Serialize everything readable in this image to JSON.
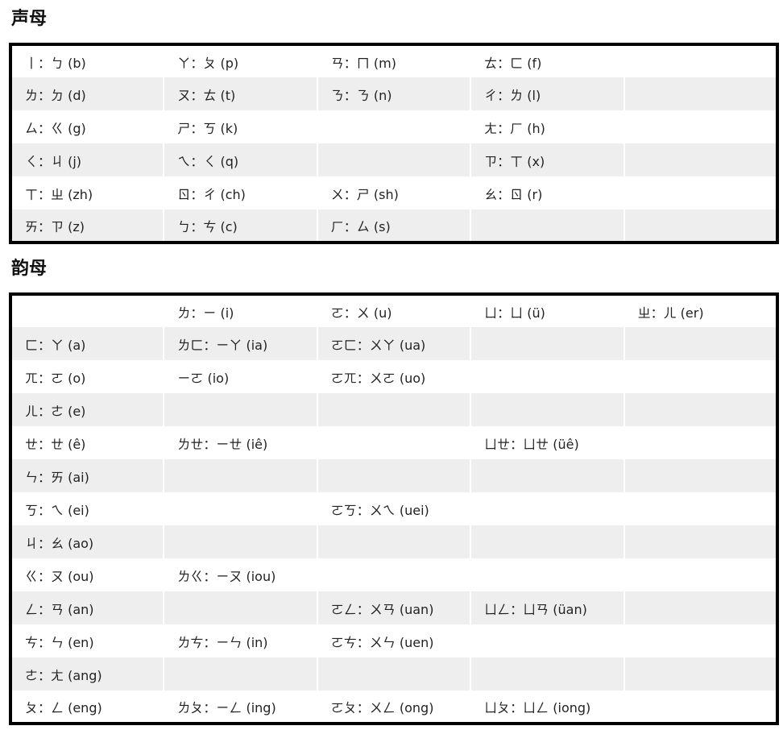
{
  "initials": {
    "title": "声母",
    "rows": [
      [
        "丨：ㄅ (b)",
        "ㄚ：ㄆ (p)",
        "ㄢ：ㄇ (m)",
        "ㄊ：ㄈ (f)",
        ""
      ],
      [
        "ㄌ：ㄉ (d)",
        "ㄡ：ㄊ (t)",
        "ㄋ：ㄋ (n)",
        "ㄔ：ㄌ (l)",
        ""
      ],
      [
        "ㄙ：ㄍ (g)",
        "ㄕ：ㄎ (k)",
        "",
        "ㄤ：ㄏ (h)",
        ""
      ],
      [
        "ㄑ：ㄐ (j)",
        "ㄟ：ㄑ (q)",
        "",
        "ㄗ：ㄒ (x)",
        ""
      ],
      [
        "ㄒ：ㄓ (zh)",
        "ㄖ：ㄔ (ch)",
        "ㄨ：ㄕ (sh)",
        "ㄠ：ㄖ (r)",
        ""
      ],
      [
        "ㄞ：ㄗ (z)",
        "ㄅ：ㄘ (c)",
        "ㄏ：ㄙ (s)",
        "",
        ""
      ]
    ]
  },
  "finals": {
    "title": "韵母",
    "rows": [
      [
        "",
        "ㄌ：ㄧ (i)",
        "ㄛ：ㄨ (u)",
        "ㄩ：ㄩ (ü)",
        "ㄓ：ㄦ (er)"
      ],
      [
        "ㄈ：ㄚ (a)",
        "ㄌㄈ：ㄧㄚ (ia)",
        "ㄛㄈ：ㄨㄚ (ua)",
        "",
        ""
      ],
      [
        "ㄫ：ㄛ (o)",
        "ㄧㄛ (io)",
        "ㄛㄫ：ㄨㄛ (uo)",
        "",
        ""
      ],
      [
        "ㄦ：ㄜ (e)",
        "",
        "",
        "",
        ""
      ],
      [
        "ㄝ：ㄝ (ê)",
        "ㄌㄝ：ㄧㄝ (iê)",
        "",
        "ㄩㄝ：ㄩㄝ (üê)",
        ""
      ],
      [
        "ㄣ：ㄞ (ai)",
        "",
        "",
        "",
        ""
      ],
      [
        "ㄎ：ㄟ (ei)",
        "",
        "ㄛㄎ：ㄨㄟ (uei)",
        "",
        ""
      ],
      [
        "ㄐ：ㄠ (ao)",
        "",
        "",
        "",
        ""
      ],
      [
        "ㄍ：ㄡ (ou)",
        "ㄌㄍ：ㄧㄡ (iou)",
        "",
        "",
        ""
      ],
      [
        "ㄥ：ㄢ (an)",
        "",
        "ㄛㄥ：ㄨㄢ (uan)",
        "ㄩㄥ：ㄩㄢ (üan)",
        ""
      ],
      [
        "ㄘ：ㄣ (en)",
        "ㄌㄘ：ㄧㄣ (in)",
        "ㄛㄘ：ㄨㄣ (uen)",
        "",
        ""
      ],
      [
        "ㄜ：ㄤ (ang)",
        "",
        "",
        "",
        ""
      ],
      [
        "ㄆ：ㄥ (eng)",
        "ㄌㄆ：ㄧㄥ (ing)",
        "ㄛㄆ：ㄨㄥ (ong)",
        "ㄩㄆ：ㄩㄥ (iong)",
        ""
      ]
    ]
  },
  "colors": {
    "stripe": "#eeeeee",
    "border": "#000000",
    "text": "#222222"
  }
}
